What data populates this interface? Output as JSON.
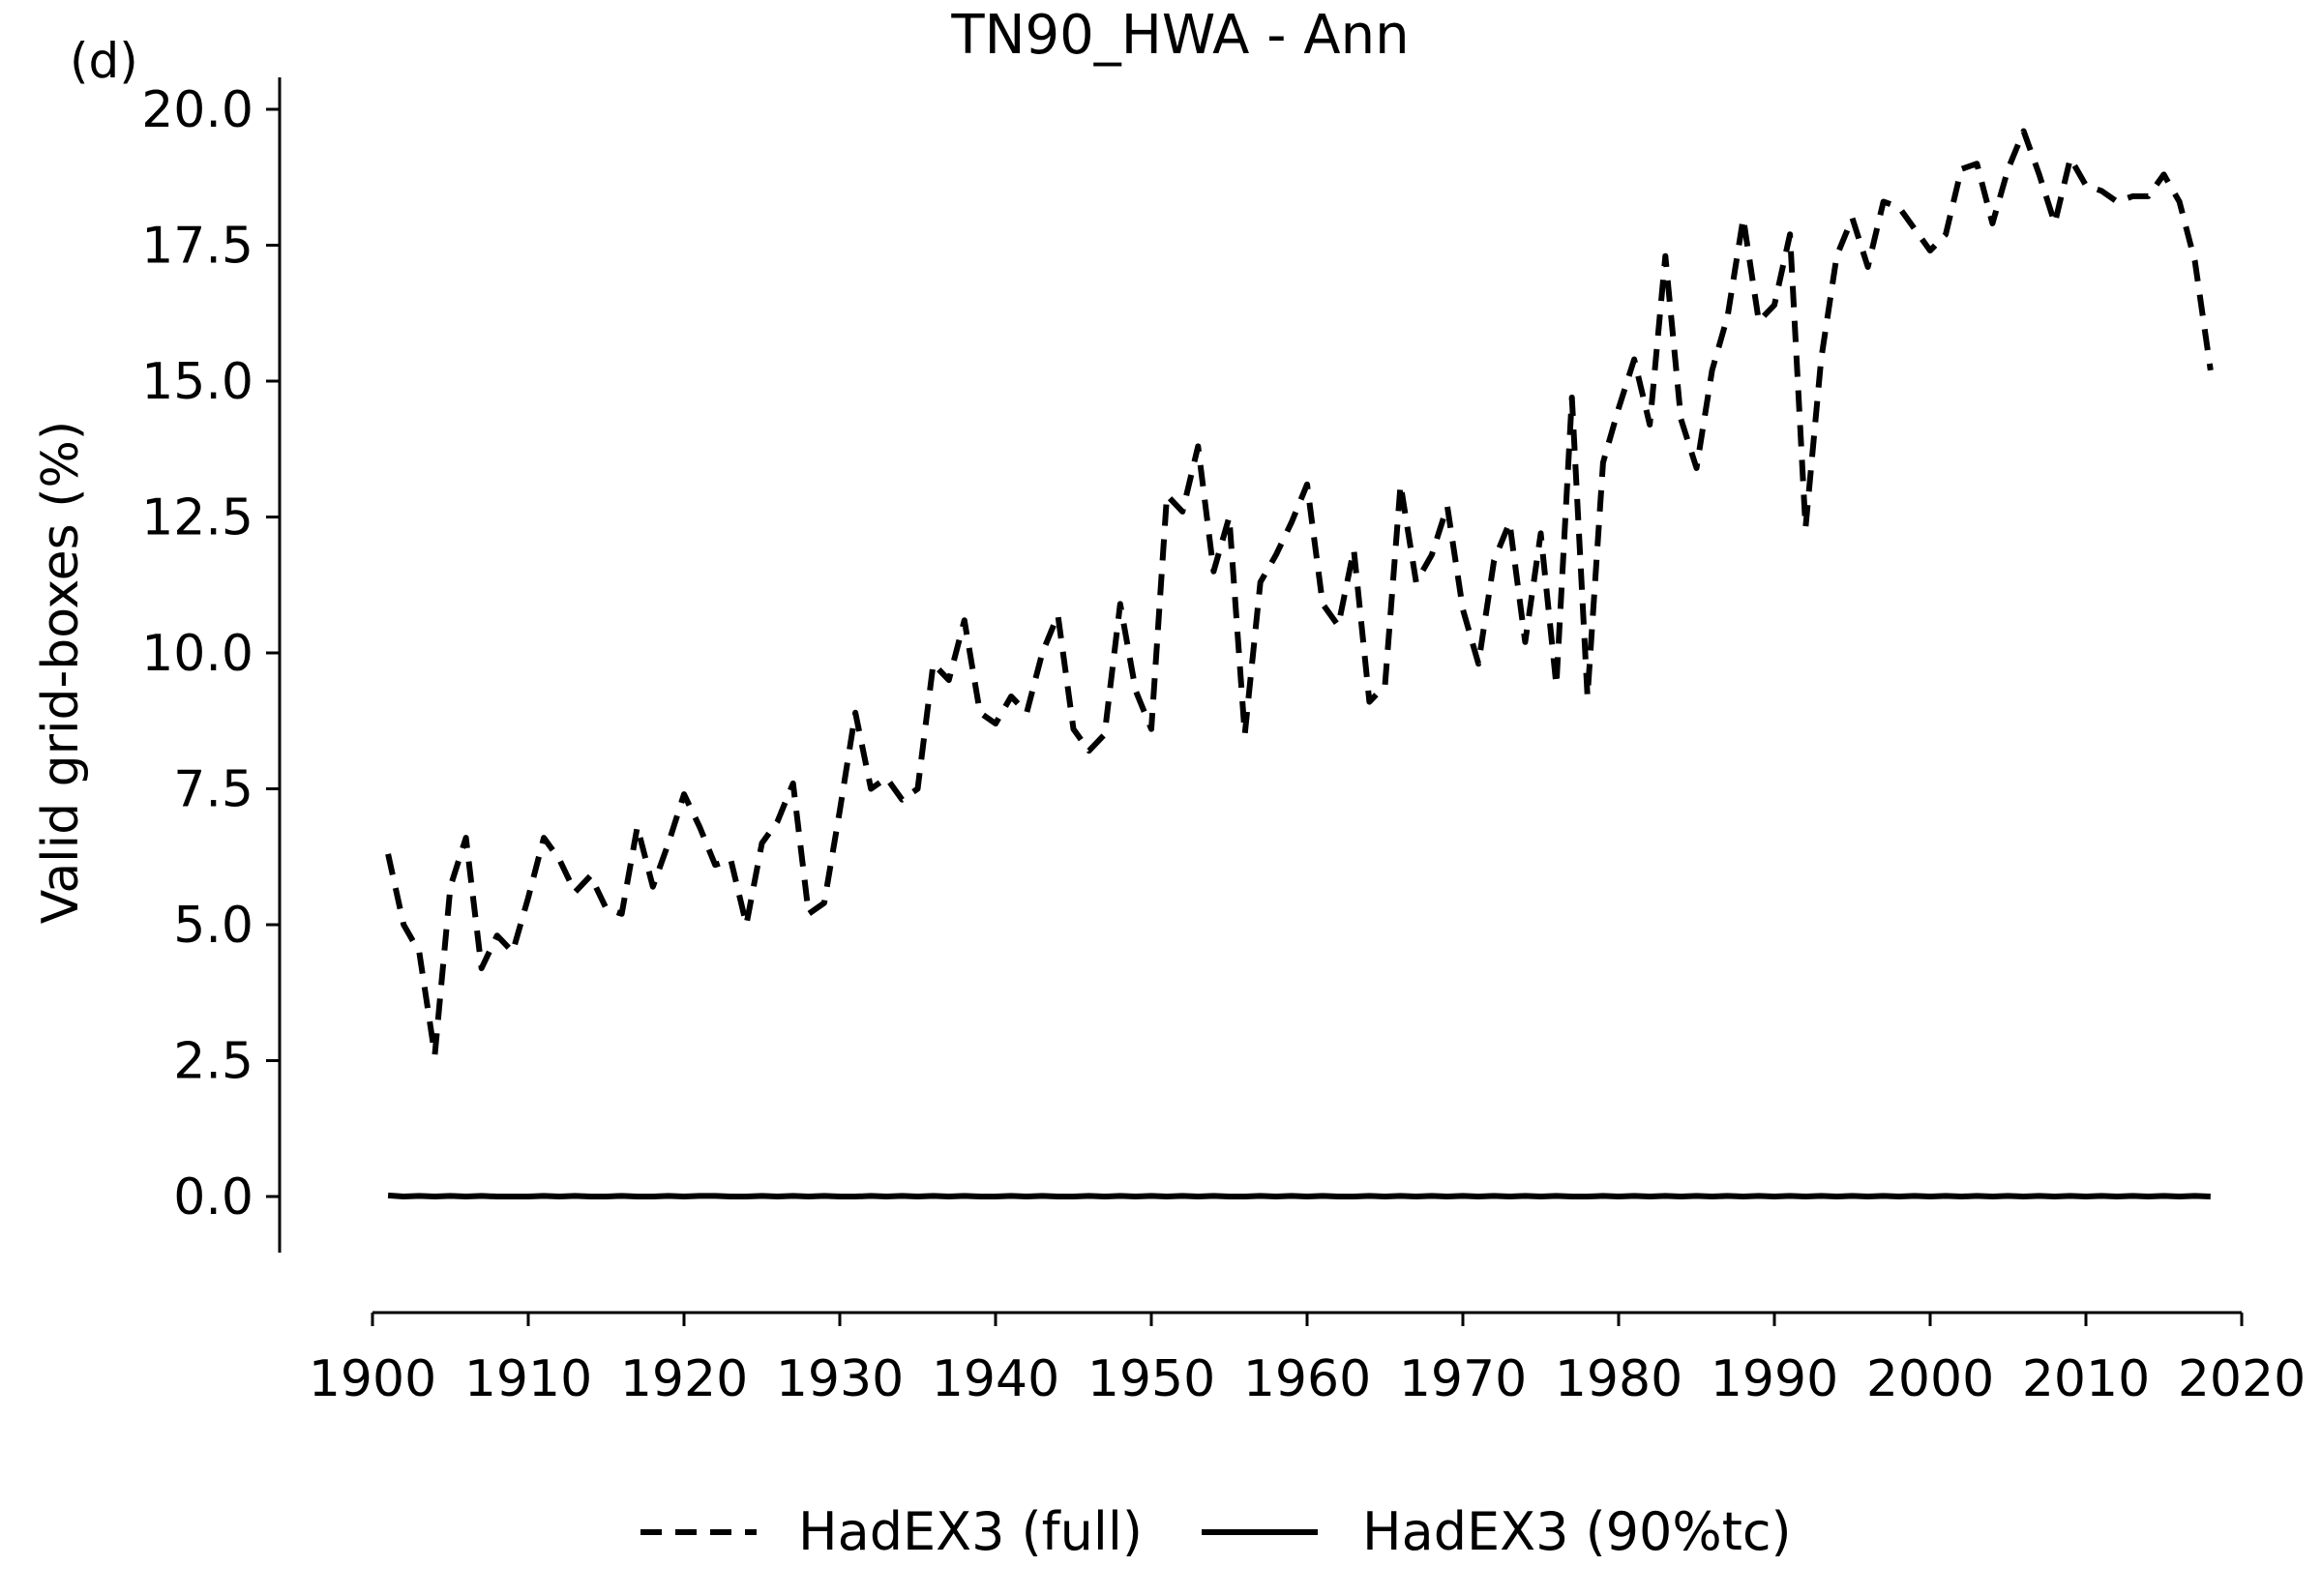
{
  "chart_data": {
    "type": "line",
    "panel_label": "(d)",
    "title": "TN90_HWA - Ann",
    "xlabel": "",
    "ylabel": "Valid grid-boxes (%)",
    "xlim": [
      1900,
      2020
    ],
    "ylim": [
      -1.0,
      20.6
    ],
    "x_ticks": [
      1900,
      1910,
      1920,
      1930,
      1940,
      1950,
      1960,
      1970,
      1980,
      1990,
      2000,
      2010,
      2020
    ],
    "y_ticks": [
      0.0,
      2.5,
      5.0,
      7.5,
      10.0,
      12.5,
      15.0,
      17.5,
      20.0
    ],
    "y_tick_labels": [
      "0.0",
      "2.5",
      "5.0",
      "7.5",
      "10.0",
      "12.5",
      "15.0",
      "17.5",
      "20.0"
    ],
    "grid": false,
    "legend_placement": "bottom-center",
    "x": [
      1901,
      1902,
      1903,
      1904,
      1905,
      1906,
      1907,
      1908,
      1909,
      1910,
      1911,
      1912,
      1913,
      1914,
      1915,
      1916,
      1917,
      1918,
      1919,
      1920,
      1921,
      1922,
      1923,
      1924,
      1925,
      1926,
      1927,
      1928,
      1929,
      1930,
      1931,
      1932,
      1933,
      1934,
      1935,
      1936,
      1937,
      1938,
      1939,
      1940,
      1941,
      1942,
      1943,
      1944,
      1945,
      1946,
      1947,
      1948,
      1949,
      1950,
      1951,
      1952,
      1953,
      1954,
      1955,
      1956,
      1957,
      1958,
      1959,
      1960,
      1961,
      1962,
      1963,
      1964,
      1965,
      1966,
      1967,
      1968,
      1969,
      1970,
      1971,
      1972,
      1973,
      1974,
      1975,
      1976,
      1977,
      1978,
      1979,
      1980,
      1981,
      1982,
      1983,
      1984,
      1985,
      1986,
      1987,
      1988,
      1989,
      1990,
      1991,
      1992,
      1993,
      1994,
      1995,
      1996,
      1997,
      1998,
      1999,
      2000,
      2001,
      2002,
      2003,
      2004,
      2005,
      2006,
      2007,
      2008,
      2009,
      2010,
      2011,
      2012,
      2013,
      2014,
      2015,
      2016,
      2017,
      2018
    ],
    "series": [
      {
        "name": "HadEX3 (full)",
        "style": "dashed",
        "color": "#000000",
        "values": [
          6.3,
          5.0,
          4.5,
          2.6,
          5.7,
          6.6,
          4.2,
          4.8,
          4.5,
          5.5,
          6.6,
          6.2,
          5.6,
          5.9,
          5.3,
          5.2,
          6.8,
          5.7,
          6.5,
          7.4,
          6.8,
          6.1,
          6.2,
          5.0,
          6.5,
          6.9,
          7.6,
          5.2,
          5.4,
          7.1,
          8.9,
          7.5,
          7.7,
          7.3,
          7.5,
          9.8,
          9.5,
          10.6,
          8.9,
          8.7,
          9.2,
          8.9,
          10.0,
          10.7,
          8.6,
          8.2,
          8.5,
          10.9,
          9.3,
          8.6,
          12.9,
          12.6,
          13.8,
          11.5,
          12.5,
          8.5,
          11.3,
          11.8,
          12.4,
          13.1,
          10.9,
          10.5,
          11.9,
          9.1,
          9.4,
          13.1,
          11.3,
          11.8,
          12.7,
          10.8,
          9.8,
          11.7,
          12.4,
          10.2,
          12.2,
          9.4,
          14.7,
          9.2,
          13.5,
          14.5,
          15.4,
          14.2,
          17.3,
          14.3,
          13.4,
          15.2,
          16.2,
          18.0,
          16.1,
          16.4,
          17.7,
          12.3,
          15.4,
          17.3,
          18.0,
          17.1,
          18.3,
          18.2,
          17.8,
          17.4,
          17.7,
          18.9,
          19.0,
          17.9,
          18.9,
          19.6,
          18.8,
          17.9,
          19.1,
          18.6,
          18.5,
          18.3,
          18.4,
          18.4,
          18.8,
          18.3,
          17.2,
          15.2
        ]
      },
      {
        "name": "HadEX3 (90%tc)",
        "style": "solid",
        "color": "#000000",
        "values": [
          0.02,
          0.0,
          0.01,
          0.0,
          0.01,
          0.0,
          0.01,
          0.0,
          0.0,
          0.0,
          0.01,
          0.0,
          0.01,
          0.0,
          0.0,
          0.01,
          0.0,
          0.0,
          0.01,
          0.0,
          0.01,
          0.01,
          0.0,
          0.0,
          0.01,
          0.0,
          0.01,
          0.0,
          0.01,
          0.0,
          0.0,
          0.01,
          0.0,
          0.01,
          0.0,
          0.01,
          0.0,
          0.01,
          0.0,
          0.0,
          0.01,
          0.0,
          0.01,
          0.0,
          0.0,
          0.01,
          0.0,
          0.01,
          0.0,
          0.01,
          0.0,
          0.01,
          0.0,
          0.01,
          0.0,
          0.0,
          0.01,
          0.0,
          0.01,
          0.0,
          0.01,
          0.0,
          0.0,
          0.01,
          0.0,
          0.01,
          0.0,
          0.01,
          0.0,
          0.01,
          0.0,
          0.01,
          0.0,
          0.01,
          0.0,
          0.01,
          0.0,
          0.0,
          0.01,
          0.0,
          0.01,
          0.0,
          0.01,
          0.0,
          0.01,
          0.0,
          0.01,
          0.0,
          0.01,
          0.0,
          0.01,
          0.0,
          0.01,
          0.0,
          0.01,
          0.0,
          0.01,
          0.0,
          0.01,
          0.0,
          0.01,
          0.0,
          0.01,
          0.0,
          0.01,
          0.0,
          0.01,
          0.0,
          0.01,
          0.0,
          0.01,
          0.0,
          0.01,
          0.0,
          0.01,
          0.0,
          0.01,
          0.0
        ]
      }
    ]
  }
}
